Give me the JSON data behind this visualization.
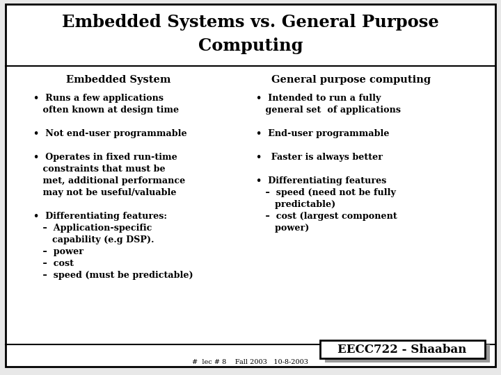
{
  "title_line1": "Embedded Systems vs. General Purpose",
  "title_line2": "Computing",
  "bg_color": "#e8e8e8",
  "slide_bg": "#ffffff",
  "title_bg": "#ffffff",
  "border_color": "#000000",
  "title_fontsize": 17.5,
  "header_fontsize": 10.5,
  "body_fontsize": 9.2,
  "footer_main": "EECC722 - Shaaban",
  "footer_sub": "#  lec # 8    Fall 2003   10-8-2003",
  "left_header": "Embedded System",
  "right_header": "General purpose computing"
}
